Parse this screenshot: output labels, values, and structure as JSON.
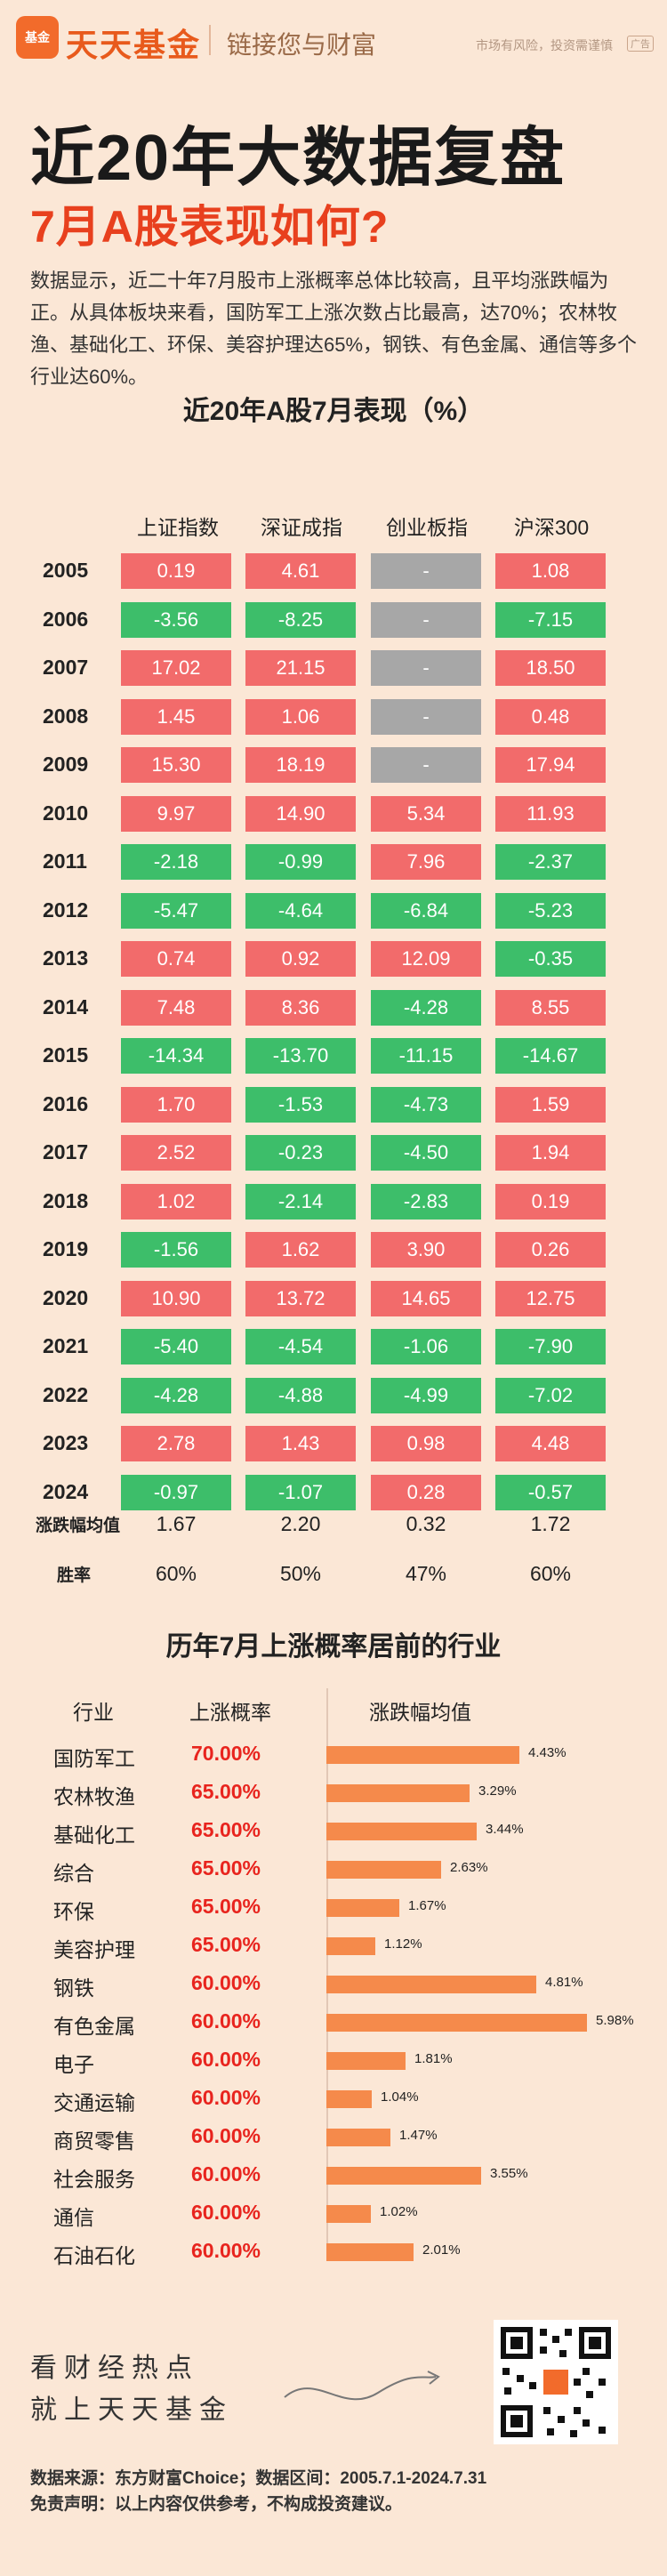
{
  "header": {
    "logo_text": "基金",
    "brand": "天天基金",
    "slogan": "链接您与财富",
    "risk_note": "市场有风险，投资需谨慎",
    "ad_tag": "广告"
  },
  "title": {
    "main": "近20年大数据复盘",
    "sub": "7月A股表现如何?"
  },
  "intro": "数据显示，近二十年7月股市上涨概率总体比较高，且平均涨跌幅为正。从具体板块来看，国防军工上涨次数占比最高，达70%；农林牧渔、基础化工、环保、美容护理达65%，钢铁、有色金属、通信等多个行业达60%。",
  "table": {
    "title": "近20年A股7月表现（%）",
    "columns": [
      "上证指数",
      "深证成指",
      "创业板指",
      "沪深300"
    ],
    "rows": [
      {
        "year": "2005",
        "values": [
          "0.19",
          "4.61",
          "-",
          "1.08"
        ]
      },
      {
        "year": "2006",
        "values": [
          "-3.56",
          "-8.25",
          "-",
          "-7.15"
        ]
      },
      {
        "year": "2007",
        "values": [
          "17.02",
          "21.15",
          "-",
          "18.50"
        ]
      },
      {
        "year": "2008",
        "values": [
          "1.45",
          "1.06",
          "-",
          "0.48"
        ]
      },
      {
        "year": "2009",
        "values": [
          "15.30",
          "18.19",
          "-",
          "17.94"
        ]
      },
      {
        "year": "2010",
        "values": [
          "9.97",
          "14.90",
          "5.34",
          "11.93"
        ]
      },
      {
        "year": "2011",
        "values": [
          "-2.18",
          "-0.99",
          "7.96",
          "-2.37"
        ]
      },
      {
        "year": "2012",
        "values": [
          "-5.47",
          "-4.64",
          "-6.84",
          "-5.23"
        ]
      },
      {
        "year": "2013",
        "values": [
          "0.74",
          "0.92",
          "12.09",
          "-0.35"
        ]
      },
      {
        "year": "2014",
        "values": [
          "7.48",
          "8.36",
          "-4.28",
          "8.55"
        ]
      },
      {
        "year": "2015",
        "values": [
          "-14.34",
          "-13.70",
          "-11.15",
          "-14.67"
        ]
      },
      {
        "year": "2016",
        "values": [
          "1.70",
          "-1.53",
          "-4.73",
          "1.59"
        ]
      },
      {
        "year": "2017",
        "values": [
          "2.52",
          "-0.23",
          "-4.50",
          "1.94"
        ]
      },
      {
        "year": "2018",
        "values": [
          "1.02",
          "-2.14",
          "-2.83",
          "0.19"
        ]
      },
      {
        "year": "2019",
        "values": [
          "-1.56",
          "1.62",
          "3.90",
          "0.26"
        ]
      },
      {
        "year": "2020",
        "values": [
          "10.90",
          "13.72",
          "14.65",
          "12.75"
        ]
      },
      {
        "year": "2021",
        "values": [
          "-5.40",
          "-4.54",
          "-1.06",
          "-7.90"
        ]
      },
      {
        "year": "2022",
        "values": [
          "-4.28",
          "-4.88",
          "-4.99",
          "-7.02"
        ]
      },
      {
        "year": "2023",
        "values": [
          "2.78",
          "1.43",
          "0.98",
          "4.48"
        ]
      },
      {
        "year": "2024",
        "values": [
          "-0.97",
          "-1.07",
          "0.28",
          "-0.57"
        ]
      }
    ],
    "summary": [
      {
        "label": "涨跌幅均值",
        "values": [
          "1.67",
          "2.20",
          "0.32",
          "1.72"
        ]
      },
      {
        "label": "胜率",
        "values": [
          "60%",
          "50%",
          "47%",
          "60%"
        ]
      }
    ],
    "colors": {
      "up": "#f26b6b",
      "down": "#3dbe6a",
      "na": "#a7a7a7"
    }
  },
  "industry": {
    "title": "历年7月上涨概率居前的行业",
    "headers": {
      "name": "行业",
      "prob": "上涨概率",
      "avg": "涨跌幅均值"
    },
    "rows": [
      {
        "name": "国防军工",
        "prob": "70.00%",
        "avg": 4.43,
        "avg_label": "4.43%"
      },
      {
        "name": "农林牧渔",
        "prob": "65.00%",
        "avg": 3.29,
        "avg_label": "3.29%"
      },
      {
        "name": "基础化工",
        "prob": "65.00%",
        "avg": 3.44,
        "avg_label": "3.44%"
      },
      {
        "name": "综合",
        "prob": "65.00%",
        "avg": 2.63,
        "avg_label": "2.63%"
      },
      {
        "name": "环保",
        "prob": "65.00%",
        "avg": 1.67,
        "avg_label": "1.67%"
      },
      {
        "name": "美容护理",
        "prob": "65.00%",
        "avg": 1.12,
        "avg_label": "1.12%"
      },
      {
        "name": "钢铁",
        "prob": "60.00%",
        "avg": 4.81,
        "avg_label": "4.81%"
      },
      {
        "name": "有色金属",
        "prob": "60.00%",
        "avg": 5.98,
        "avg_label": "5.98%"
      },
      {
        "name": "电子",
        "prob": "60.00%",
        "avg": 1.81,
        "avg_label": "1.81%"
      },
      {
        "name": "交通运输",
        "prob": "60.00%",
        "avg": 1.04,
        "avg_label": "1.04%"
      },
      {
        "name": "商贸零售",
        "prob": "60.00%",
        "avg": 1.47,
        "avg_label": "1.47%"
      },
      {
        "name": "社会服务",
        "prob": "60.00%",
        "avg": 3.55,
        "avg_label": "3.55%"
      },
      {
        "name": "通信",
        "prob": "60.00%",
        "avg": 1.02,
        "avg_label": "1.02%"
      },
      {
        "name": "石油石化",
        "prob": "60.00%",
        "avg": 2.01,
        "avg_label": "2.01%"
      }
    ],
    "bar_color": "#f58a4b"
  },
  "footer": {
    "line1": "看财经热点",
    "line2": "就上天天基金",
    "source": "数据来源：东方财富Choice；数据区间：2005.7.1-2024.7.31",
    "disclaimer": "免责声明：以上内容仅供参考，不构成投资建议。"
  }
}
